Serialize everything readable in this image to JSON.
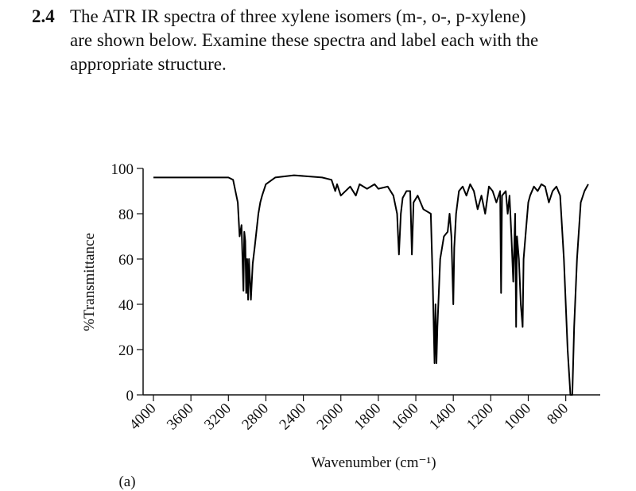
{
  "problem": {
    "number": "2.4",
    "lines": [
      "The ATR IR spectra of three xylene isomers (m-, o-, p-xylene)",
      "are shown below. Examine these spectra and label each with the",
      "appropriate structure."
    ]
  },
  "chart_data": {
    "type": "line",
    "panel": "(a)",
    "xlabel": "Wavenumber (cm⁻¹)",
    "ylabel": "%Transmittance",
    "xlim": [
      4000,
      650
    ],
    "xsplit": 2000,
    "xticks": [
      4000,
      3600,
      3200,
      2800,
      2400,
      2000,
      1800,
      1600,
      1400,
      1200,
      1000,
      800
    ],
    "ylim": [
      0,
      100
    ],
    "yticks": [
      0,
      20,
      40,
      60,
      80,
      100
    ],
    "color": "#000000",
    "series": [
      {
        "x": [
          4000,
          3200,
          3150,
          3100,
          3080,
          3060,
          3040,
          3030,
          3020,
          3010,
          3000,
          2990,
          2980,
          2960,
          2940,
          2920,
          2880,
          2860,
          2840,
          2800,
          2700,
          2500,
          2200,
          2100,
          2060,
          2040,
          2000,
          1950,
          1920,
          1900,
          1860,
          1820,
          1800,
          1750,
          1720,
          1700,
          1690,
          1680,
          1670,
          1650,
          1630,
          1621,
          1612,
          1590,
          1560,
          1520,
          1510,
          1500,
          1495,
          1490,
          1485,
          1470,
          1450,
          1430,
          1420,
          1410,
          1400,
          1395,
          1385,
          1370,
          1350,
          1330,
          1310,
          1290,
          1270,
          1250,
          1230,
          1210,
          1190,
          1170,
          1150,
          1145,
          1140,
          1120,
          1110,
          1100,
          1090,
          1080,
          1070,
          1065,
          1060,
          1050,
          1040,
          1030,
          1025,
          1010,
          1000,
          990,
          970,
          950,
          930,
          910,
          890,
          870,
          850,
          830,
          810,
          790,
          775,
          765,
          755,
          740,
          720,
          700,
          680
        ],
        "values": [
          96,
          96,
          95,
          85,
          70,
          75,
          46,
          72,
          68,
          45,
          60,
          42,
          60,
          42,
          58,
          65,
          80,
          85,
          88,
          93,
          96,
          97,
          96,
          95,
          90,
          93,
          88,
          92,
          88,
          93,
          91,
          93,
          91,
          92,
          88,
          80,
          62,
          80,
          87,
          90,
          90,
          62,
          85,
          88,
          82,
          80,
          50,
          14,
          40,
          14,
          30,
          60,
          70,
          72,
          80,
          70,
          40,
          65,
          80,
          90,
          92,
          88,
          93,
          90,
          82,
          88,
          80,
          92,
          90,
          85,
          90,
          45,
          88,
          90,
          80,
          88,
          70,
          50,
          80,
          30,
          70,
          60,
          40,
          30,
          60,
          75,
          85,
          88,
          92,
          90,
          93,
          92,
          85,
          90,
          92,
          88,
          60,
          20,
          0,
          0,
          30,
          60,
          85,
          90,
          93
        ]
      }
    ]
  }
}
